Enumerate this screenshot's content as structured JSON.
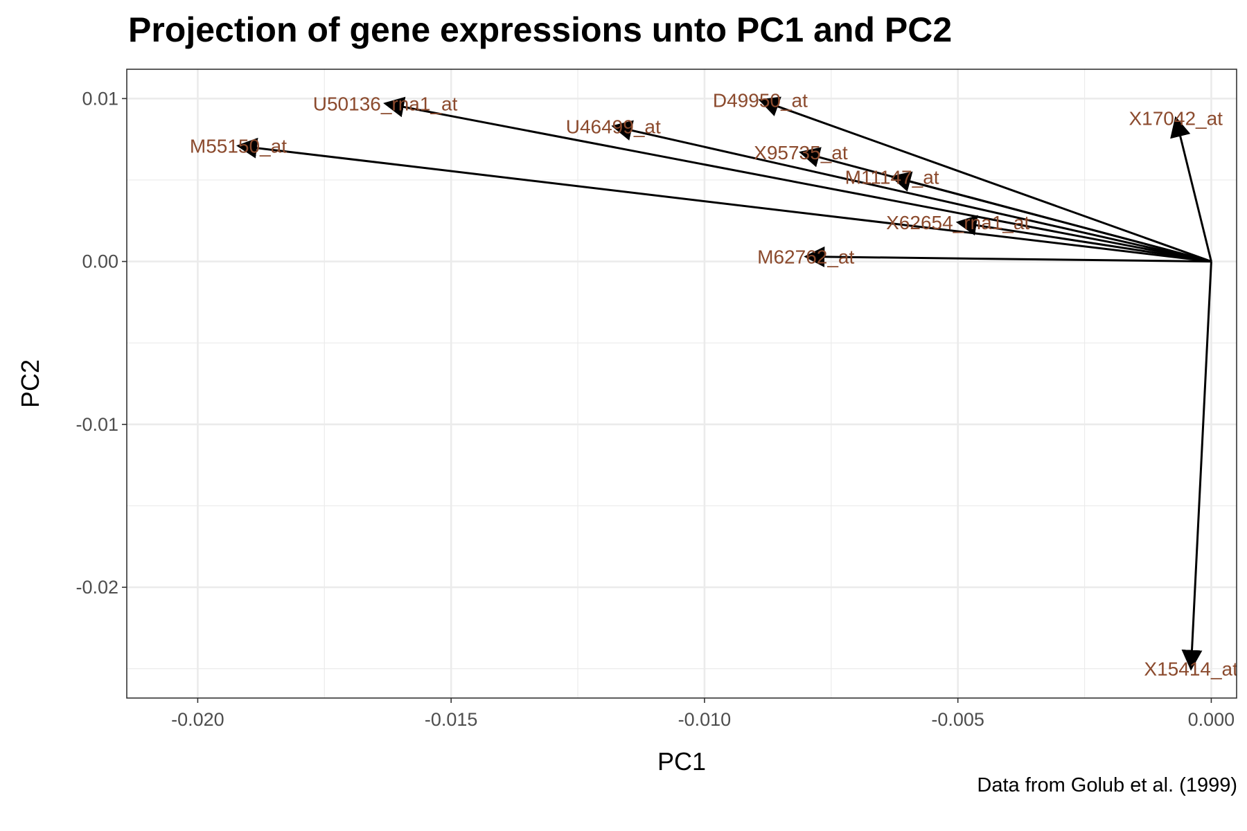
{
  "chart_data": {
    "type": "biplot",
    "title": "Projection of gene expressions unto PC1 and PC2",
    "caption": "Data from Golub et al. (1999)",
    "xlabel": "PC1",
    "ylabel": "PC2",
    "xlim": [
      -0.0214,
      0.0005
    ],
    "ylim": [
      -0.0268,
      0.0118
    ],
    "x_ticks": [
      -0.02,
      -0.015,
      -0.01,
      -0.005,
      0.0
    ],
    "x_tick_labels": [
      "-0.020",
      "-0.015",
      "-0.010",
      "-0.005",
      "0.000"
    ],
    "y_ticks": [
      0.01,
      0.0,
      -0.01,
      -0.02
    ],
    "y_tick_labels": [
      "0.01",
      "0.00",
      "-0.01",
      "-0.02"
    ],
    "grid": true,
    "origin": [
      0,
      0
    ],
    "arrow_color": "#000000",
    "label_color": "#8b4a2d",
    "arrows": [
      {
        "name": "X17042_at",
        "x": -0.0007,
        "y": 0.0088
      },
      {
        "name": "D49950_at",
        "x": -0.0089,
        "y": 0.0099
      },
      {
        "name": "U50136_rna1_at",
        "x": -0.0163,
        "y": 0.0097
      },
      {
        "name": "U46499_at",
        "x": -0.0118,
        "y": 0.0083
      },
      {
        "name": "M55150_at",
        "x": -0.0192,
        "y": 0.0071
      },
      {
        "name": "X95735_at",
        "x": -0.0081,
        "y": 0.0067
      },
      {
        "name": "M11147_at",
        "x": -0.0063,
        "y": 0.0052
      },
      {
        "name": "X62654_rna1_at",
        "x": -0.005,
        "y": 0.0024
      },
      {
        "name": "M62762_at",
        "x": -0.008,
        "y": 0.0003
      },
      {
        "name": "X15414_at",
        "x": -0.0004,
        "y": -0.025
      }
    ]
  }
}
